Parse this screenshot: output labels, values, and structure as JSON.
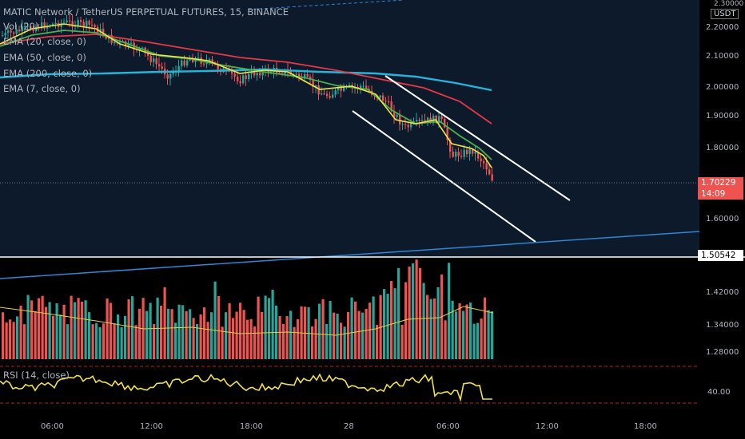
{
  "header": {
    "title": "MATIC Network / TetherUS PERPETUAL FUTURES, 15, BINANCE",
    "indicators": [
      "Vol (20)",
      "EMA (20, close, 0)",
      "EMA (50, close, 0)",
      "EMA (200, close, 0)",
      "EMA (7, close, 0)"
    ],
    "rsi_label": "RSI (14, close)"
  },
  "axis": {
    "currency": "USDT",
    "price_ticks": [
      "2.30000",
      "2.20000",
      "2.10000",
      "2.00000",
      "1.90000",
      "1.80000",
      "1.60000",
      "1.42000",
      "1.34000",
      "1.28000"
    ],
    "rsi_tick": "40.00",
    "time_ticks": [
      "06:00",
      "12:00",
      "18:00",
      "28",
      "06:00",
      "12:00",
      "18:00"
    ]
  },
  "badges": {
    "last_price": "1.70229",
    "countdown": "14:09",
    "level": "1.50542"
  },
  "colors": {
    "background_price": "#0d1a2b",
    "background_lower": "#000000",
    "up": "#26a69a",
    "down": "#ef5350",
    "ema7": "#f0e440",
    "ema20": "#4caf50",
    "ema50": "#e53945",
    "ema200": "#26b5d9",
    "rsi": "#f2e04a",
    "trendline": "#ffffff",
    "support": "#2f86d6"
  },
  "chart_data": {
    "type": "candlestick",
    "symbol": "MATIC Network / TetherUS PERPETUAL FUTURES",
    "interval": "15",
    "exchange": "BINANCE",
    "y_range_main": [
      1.5,
      2.3
    ],
    "last_price": 1.70229,
    "horizontal_level": 1.50542,
    "ema_approx_path": {
      "ema200": [
        2.04,
        2.045,
        2.035,
        2.025,
        2.02,
        2.03,
        2.035,
        2.03,
        2.015,
        2.0,
        1.99
      ],
      "ema50": [
        2.2,
        2.185,
        2.16,
        2.14,
        2.1,
        2.09,
        2.08,
        2.06,
        2.02,
        1.96,
        1.88
      ]
    },
    "rsi_reference_level": 40.0
  }
}
